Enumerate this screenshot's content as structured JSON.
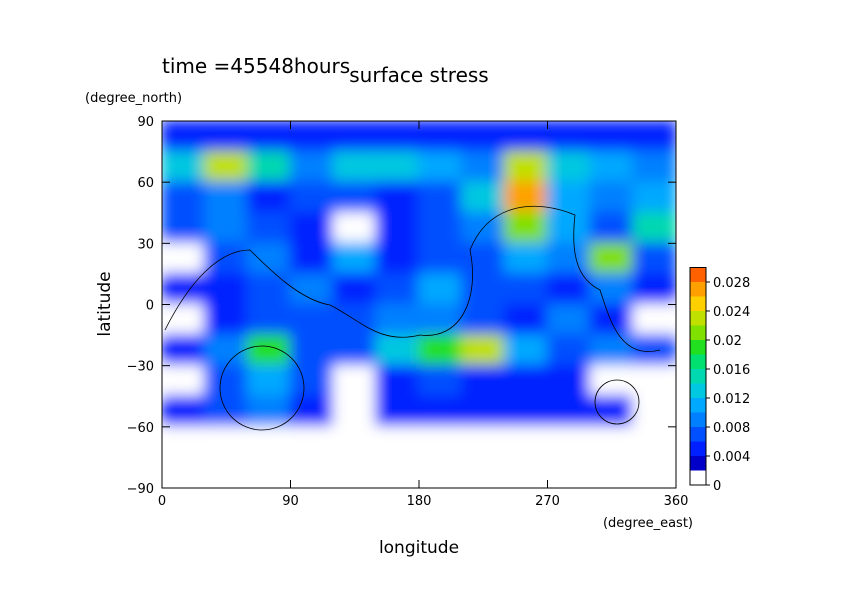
{
  "chart_data": {
    "type": "contour",
    "title": "surface stress",
    "subtitle": "time =45548hours",
    "x_label": "longitude",
    "y_label": "latitude",
    "x_unit": "(degree_east)",
    "y_unit": "(degree_north)",
    "xlim": [
      0,
      360
    ],
    "ylim": [
      -90,
      90
    ],
    "xticks": [
      0,
      90,
      180,
      270,
      360
    ],
    "yticks": [
      {
        "value": -90,
        "label": "−90"
      },
      {
        "value": -60,
        "label": "−60"
      },
      {
        "value": -30,
        "label": "−30"
      },
      0,
      30,
      60,
      90
    ],
    "lon": [
      15,
      45,
      75,
      105,
      135,
      165,
      195,
      225,
      255,
      285,
      315,
      345
    ],
    "lat": [
      82.5,
      67.5,
      52.5,
      37.5,
      22.5,
      7.5,
      -7.5,
      -22.5,
      -37.5,
      -52.5,
      -67.5,
      -82.5
    ],
    "z": [
      [
        0.004,
        0.004,
        0.004,
        0.004,
        0.004,
        0.004,
        0.004,
        0.004,
        0.004,
        0.004,
        0.004,
        0.004
      ],
      [
        0.012,
        0.022,
        0.014,
        0.008,
        0.012,
        0.012,
        0.01,
        0.008,
        0.022,
        0.012,
        0.01,
        0.008
      ],
      [
        0.006,
        0.008,
        0.004,
        0.006,
        0.006,
        0.004,
        0.006,
        0.012,
        0.026,
        0.01,
        0.008,
        0.01
      ],
      [
        0.006,
        0.008,
        0.006,
        0.004,
        0,
        0.004,
        0.006,
        0.008,
        0.02,
        0.01,
        0.006,
        0.014
      ],
      [
        0,
        0.006,
        0.008,
        0.004,
        0.01,
        0.004,
        0.006,
        0.006,
        0.01,
        0.008,
        0.02,
        0.006
      ],
      [
        0.004,
        0.004,
        0.006,
        0.008,
        0.004,
        0.006,
        0.01,
        0.006,
        0.006,
        0.004,
        0.008,
        0.004
      ],
      [
        0,
        0.004,
        0.006,
        0.006,
        0.006,
        0.008,
        0.008,
        0.006,
        0.004,
        0.008,
        0.004,
        0
      ],
      [
        0.004,
        0.008,
        0.018,
        0.006,
        0.006,
        0.012,
        0.018,
        0.022,
        0.01,
        0.006,
        0.008,
        0.006
      ],
      [
        0,
        0.006,
        0.01,
        0.006,
        0,
        0.004,
        0.006,
        0.004,
        0.004,
        0.004,
        0,
        0
      ],
      [
        0.004,
        0.006,
        0.008,
        0.004,
        0,
        0.004,
        0.004,
        0.004,
        0.004,
        0.004,
        0.004,
        0
      ],
      [
        0,
        0,
        0,
        0,
        0,
        0,
        0,
        0,
        0,
        0,
        0,
        0
      ],
      [
        0,
        0,
        0,
        0,
        0,
        0,
        0,
        0,
        0,
        0,
        0,
        0
      ]
    ],
    "zlim": [
      0,
      0.03
    ],
    "level_step": 0.002,
    "colors": [
      "#ffffff",
      "#0000c8",
      "#0020ff",
      "#0050ff",
      "#0080ff",
      "#00a8ff",
      "#00c8e0",
      "#00d8b0",
      "#00e070",
      "#20e020",
      "#80e000",
      "#c0e000",
      "#ffd000",
      "#ffa000",
      "#ff6000"
    ],
    "colorbar_ticks": [
      0,
      0.004,
      0.008,
      0.012,
      0.016,
      0.02,
      0.024,
      0.028
    ]
  }
}
